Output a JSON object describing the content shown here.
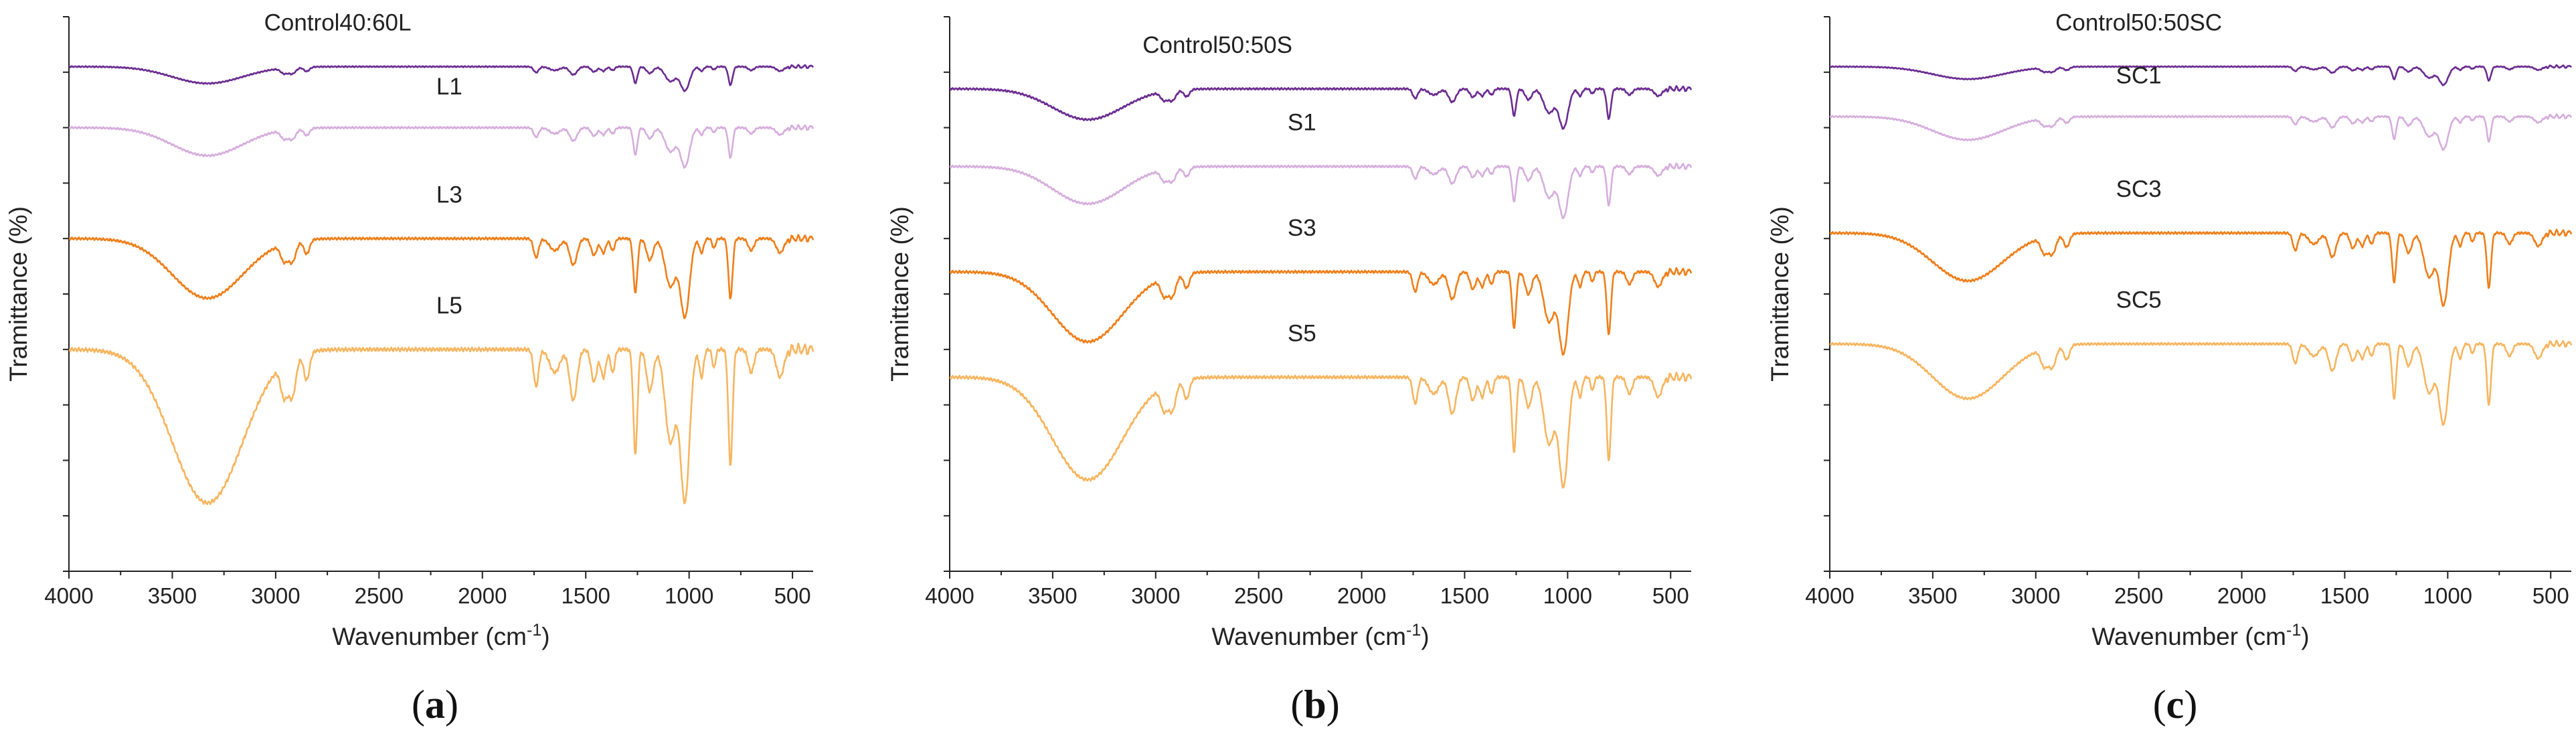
{
  "figure": {
    "panels": [
      {
        "label": "(a)",
        "label_main": "a",
        "label_open": "(",
        "label_close": ")",
        "chart_ref": 0
      },
      {
        "label": "(b)",
        "label_main": "b",
        "label_open": "(",
        "label_close": ")",
        "chart_ref": 1
      },
      {
        "label": "(c)",
        "label_main": "c",
        "label_open": "(",
        "label_close": ")",
        "chart_ref": 2
      }
    ]
  },
  "colors": {
    "control": "#6b2c91",
    "pct1": "#d6aedd",
    "pct3": "#ef7f1a",
    "pct5": "#f7b55f",
    "axis": "#222222"
  },
  "chart_data": [
    {
      "type": "line",
      "title": "",
      "xlabel": "Wavenumber (cm⁻¹)",
      "xlabel_main": "Wavenumber (cm",
      "xlabel_sup": "-1",
      "xlabel_close": ")",
      "ylabel": "Tramittance (%)",
      "xlim": [
        4000,
        400
      ],
      "ylim": [
        0,
        100
      ],
      "x_ticks": [
        4000,
        3500,
        3000,
        2500,
        2000,
        1500,
        1000,
        500
      ],
      "y_ticks": [
        0,
        10,
        20,
        30,
        40,
        50,
        60,
        70,
        80,
        90,
        100
      ],
      "y_tick_labels": "none",
      "series": [
        {
          "name": "Control40:60L",
          "color": "#6b2c91",
          "offset": 91,
          "depth": 12,
          "label_x": 2700,
          "label_y": 97.5
        },
        {
          "name": "L1",
          "color": "#d6aedd",
          "offset": 80,
          "depth": 18,
          "label_x": 2160,
          "label_y": 86
        },
        {
          "name": "L3",
          "color": "#ef7f1a",
          "offset": 60,
          "depth": 24,
          "label_x": 2160,
          "label_y": 66.5
        },
        {
          "name": "L5",
          "color": "#f7b55f",
          "offset": 40,
          "depth": 38,
          "label_x": 2160,
          "label_y": 46.5
        }
      ]
    },
    {
      "type": "line",
      "title": "",
      "xlabel": "Wavenumber (cm⁻¹)",
      "xlabel_main": "Wavenumber (cm",
      "xlabel_sup": "-1",
      "xlabel_close": ")",
      "ylabel": "Tramittance (%)",
      "xlim": [
        4000,
        400
      ],
      "ylim": [
        0,
        100
      ],
      "x_ticks": [
        4000,
        3500,
        3000,
        2500,
        2000,
        1500,
        1000,
        500
      ],
      "y_ticks": [
        0,
        10,
        20,
        30,
        40,
        50,
        60,
        70,
        80,
        90,
        100
      ],
      "y_tick_labels": "none",
      "series": [
        {
          "name": "Control50:50S",
          "color": "#6b2c91",
          "offset": 87,
          "depth": 18,
          "label_x": 2700,
          "label_y": 93.5
        },
        {
          "name": "S1",
          "color": "#d6aedd",
          "offset": 73,
          "depth": 20,
          "label_x": 2290,
          "label_y": 79.5
        },
        {
          "name": "S3",
          "color": "#ef7f1a",
          "offset": 54,
          "depth": 25,
          "label_x": 2290,
          "label_y": 60.5
        },
        {
          "name": "S5",
          "color": "#f7b55f",
          "offset": 35,
          "depth": 30,
          "label_x": 2290,
          "label_y": 41.5
        }
      ]
    },
    {
      "type": "line",
      "title": "",
      "xlabel": "Wavenumber (cm⁻¹)",
      "xlabel_main": "Wavenumber (cm",
      "xlabel_sup": "-1",
      "xlabel_close": ")",
      "ylabel": "Tramittance (%)",
      "xlim": [
        4000,
        400
      ],
      "ylim": [
        0,
        100
      ],
      "x_ticks": [
        4000,
        3500,
        3000,
        2500,
        2000,
        1500,
        1000,
        500
      ],
      "y_ticks": [
        0,
        10,
        20,
        30,
        40,
        50,
        60,
        70,
        80,
        90,
        100
      ],
      "y_tick_labels": "none",
      "series": [
        {
          "name": "Control50:50SC",
          "color": "#6b2c91",
          "offset": 91,
          "depth": 10,
          "label_x": 2500,
          "label_y": 97.5
        },
        {
          "name": "SC1",
          "color": "#d6aedd",
          "offset": 82,
          "depth": 15,
          "label_x": 2500,
          "label_y": 88
        },
        {
          "name": "SC3",
          "color": "#ef7f1a",
          "offset": 61,
          "depth": 22,
          "label_x": 2500,
          "label_y": 67.5
        },
        {
          "name": "SC5",
          "color": "#f7b55f",
          "offset": 41,
          "depth": 22,
          "label_x": 2500,
          "label_y": 47.5
        }
      ]
    }
  ]
}
